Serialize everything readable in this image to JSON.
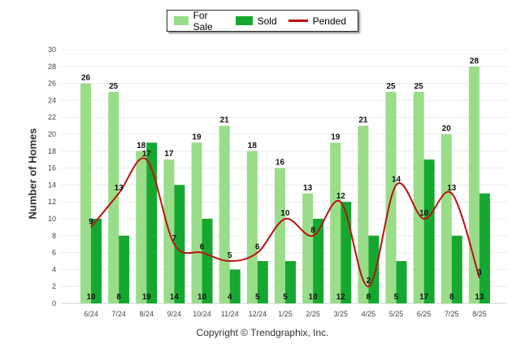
{
  "legend": {
    "items": [
      {
        "label": "For Sale",
        "color": "#99dd88",
        "kind": "bar"
      },
      {
        "label": "Sold",
        "color": "#15a831",
        "kind": "bar"
      },
      {
        "label": "Pended",
        "color": "#bb1111",
        "kind": "line"
      }
    ]
  },
  "copyright": "Copyright © Trendgraphix, Inc.",
  "chart_data": {
    "type": "bar",
    "ylabel": "Number of Homes",
    "ylim": [
      0,
      30
    ],
    "yticks": [
      0,
      2,
      4,
      6,
      8,
      10,
      12,
      14,
      16,
      18,
      20,
      22,
      24,
      26,
      28,
      30
    ],
    "grid": true,
    "legend_position": "top-center",
    "categories": [
      "6/24",
      "7/24",
      "8/24",
      "9/24",
      "10/24",
      "11/24",
      "12/24",
      "1/25",
      "2/25",
      "3/25",
      "4/25",
      "5/25",
      "6/25",
      "7/25",
      "8/25"
    ],
    "series": [
      {
        "name": "For Sale",
        "type": "bar",
        "color": "#99dd88",
        "values": [
          26,
          25,
          18,
          17,
          19,
          21,
          18,
          16,
          13,
          19,
          21,
          25,
          25,
          20,
          28
        ]
      },
      {
        "name": "Sold",
        "type": "bar",
        "color": "#15a831",
        "values": [
          10,
          8,
          19,
          14,
          10,
          4,
          5,
          5,
          10,
          12,
          8,
          5,
          17,
          8,
          13
        ]
      },
      {
        "name": "Pended",
        "type": "line",
        "color": "#bb1111",
        "values": [
          9,
          13,
          17,
          7,
          6,
          5,
          6,
          10,
          8,
          12,
          2,
          14,
          10,
          13,
          3
        ]
      }
    ]
  }
}
